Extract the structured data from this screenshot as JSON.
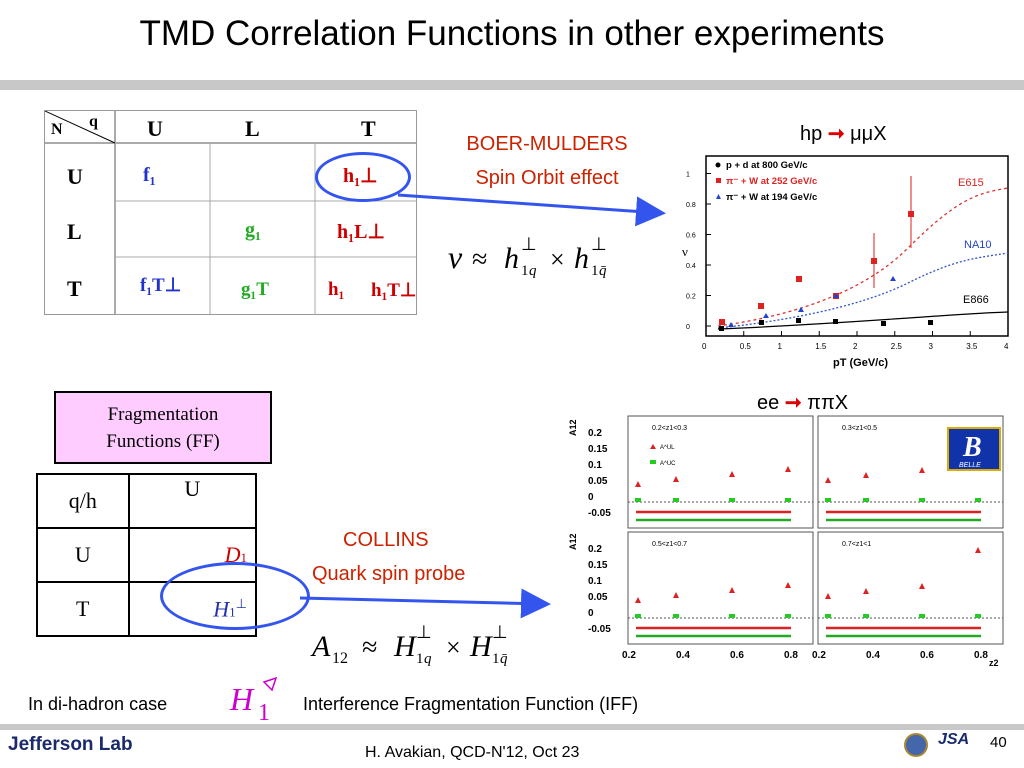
{
  "title": "TMD Correlation Functions in other experiments",
  "tmd_table": {
    "corner_n": "N",
    "corner_q": "q",
    "col_headers": [
      "U",
      "L",
      "T"
    ],
    "row_headers": [
      "U",
      "L",
      "T"
    ],
    "entries": {
      "uu": "f₁",
      "ut": "h₁⊥",
      "ll": "g₁",
      "lt": "h₁L⊥",
      "tu": "f₁T⊥",
      "tl": "g₁T",
      "tt1": "h₁",
      "tt2": "h₁T⊥"
    }
  },
  "boer_mulders": {
    "line1": "BOER-MULDERS",
    "line2": "Spin Orbit effect",
    "formula": "ν ≈ h1q⊥ × h1q̄⊥"
  },
  "plot_hp": {
    "label_prefix": "hp",
    "label_suffix": "μμX",
    "legend": [
      "p + d at 800 GeV/c",
      "π⁻ + W at 252 GeV/c",
      "π⁻ + W at 194 GeV/c"
    ],
    "curve_labels": [
      "E615",
      "NA10",
      "E866"
    ],
    "x_axis_label": "pT (GeV/c)",
    "y_axis_label": "ν",
    "x_ticks": [
      "0",
      "0.5",
      "1",
      "1.5",
      "2",
      "2.5",
      "3",
      "3.5",
      "4"
    ],
    "y_ticks": [
      "0",
      "0.2",
      "0.4",
      "0.6",
      "0.8",
      "1"
    ]
  },
  "ff": {
    "box_line1": "Fragmentation",
    "box_line2": "Functions (FF)",
    "header_left": "q/h",
    "header_right": "U",
    "rows": [
      {
        "label": "U",
        "value": "D1"
      },
      {
        "label": "T",
        "value": "H1⊥"
      }
    ]
  },
  "collins": {
    "line1": "COLLINS",
    "line2": "Quark spin probe",
    "formula": "A12 ≈ H1q⊥ × H1q̄⊥"
  },
  "plot_ee": {
    "label_prefix": "ee",
    "label_suffix": "ππX",
    "y_axis_label": "A12",
    "x_axis_label": "z2",
    "panel_labels": [
      "0.2<z1<0.3",
      "0.3<z1<0.5",
      "0.5<z1<0.7",
      "0.7<z1<1"
    ],
    "legend": [
      "A^UL",
      "A^UC"
    ],
    "y_ticks": [
      "-0.05",
      "0",
      "0.05",
      "0.1",
      "0.15",
      "0.2"
    ],
    "x_ticks": [
      "0.2",
      "0.4",
      "0.6",
      "0.8"
    ],
    "belle_logo": "BELLE"
  },
  "dihadron": {
    "prefix": "In di-hadron case",
    "description": "Interference Fragmentation Function (IFF)"
  },
  "footer": {
    "logo": "Jefferson Lab",
    "citation": "H. Avakian, QCD-N'12,  Oct 23",
    "page_number": "40",
    "jsa": "JSA"
  },
  "colors": {
    "red": "#cc2200",
    "blue": "#3355ee",
    "ff_box": "#ffccff",
    "green": "#22aa22"
  }
}
